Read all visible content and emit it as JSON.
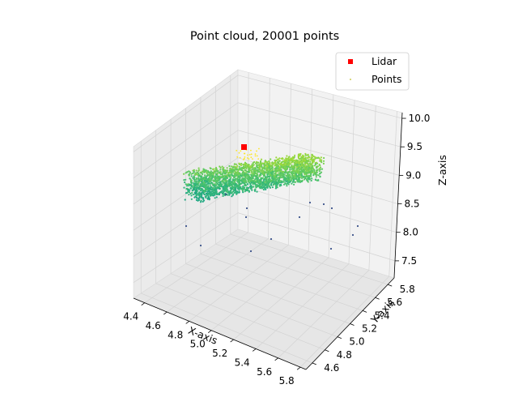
{
  "chart_data": {
    "type": "scatter",
    "projection": "3d",
    "title": "Point cloud, 20001 points",
    "xlabel": "X-axis",
    "ylabel": "Y-axis",
    "zlabel": "Z-axis",
    "x_ticks": [
      "4.4",
      "4.6",
      "4.8",
      "5.0",
      "5.2",
      "5.4",
      "5.6",
      "5.8"
    ],
    "y_ticks": [
      "4.6",
      "4.8",
      "5.0",
      "5.2",
      "5.4",
      "5.6",
      "5.8"
    ],
    "z_ticks": [
      "7.5",
      "8.0",
      "8.5",
      "9.0",
      "9.5",
      "10.0"
    ],
    "xlim": [
      4.3,
      5.85
    ],
    "ylim": [
      4.5,
      5.9
    ],
    "zlim": [
      7.2,
      10.1
    ],
    "grid": true,
    "legend_position": "top-right",
    "colormap": "viridis",
    "series": [
      {
        "name": "Lidar",
        "marker": "square",
        "color": "#ff0000",
        "points": [
          [
            5.05,
            5.6,
            9.4
          ]
        ]
      },
      {
        "name": "Points",
        "marker": "dot",
        "color": "#bcbd22",
        "count": 20001
      }
    ]
  }
}
